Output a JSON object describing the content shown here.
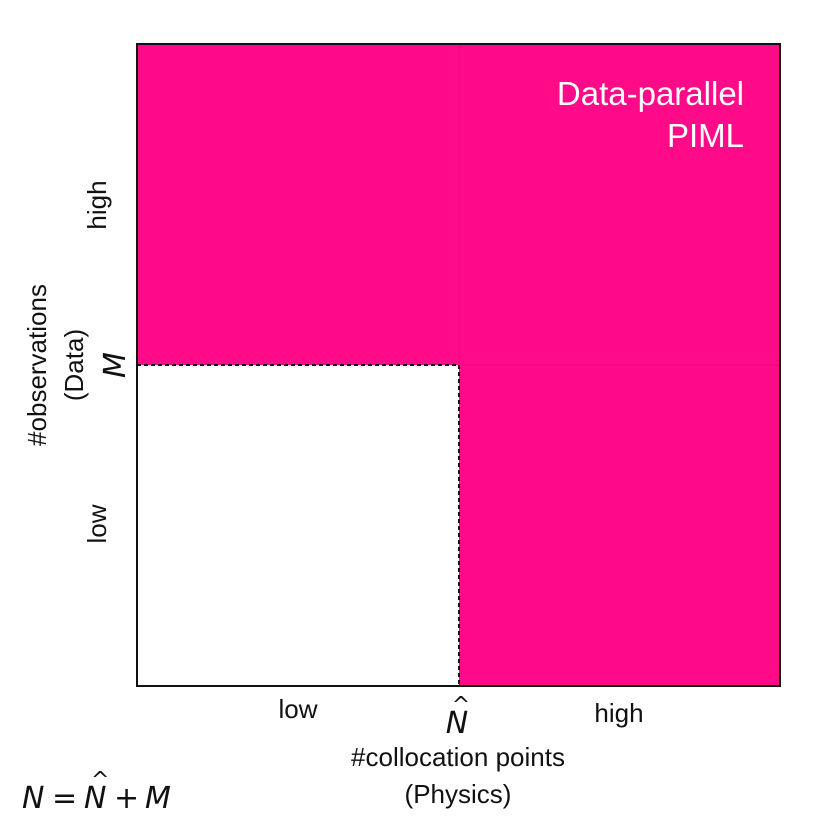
{
  "colors": {
    "region_fill": "#ff0a88",
    "background": "#ffffff",
    "frame": "#111111",
    "text": "#111111",
    "region_text": "#ffffff"
  },
  "region": {
    "label_line1": "Data-parallel",
    "label_line2": "PIML"
  },
  "x_axis": {
    "low": "low",
    "high": "high",
    "threshold": "N",
    "threshold_hat": "^",
    "title_line1": "#collocation points",
    "title_line2": "(Physics)"
  },
  "y_axis": {
    "low": "low",
    "high": "high",
    "threshold": "M",
    "title_line1": "#observations",
    "title_line2": "(Data)"
  },
  "formula": {
    "lhs": "N",
    "eq": "=",
    "n": "N",
    "hat": "^",
    "plus": "+",
    "m": "M"
  }
}
